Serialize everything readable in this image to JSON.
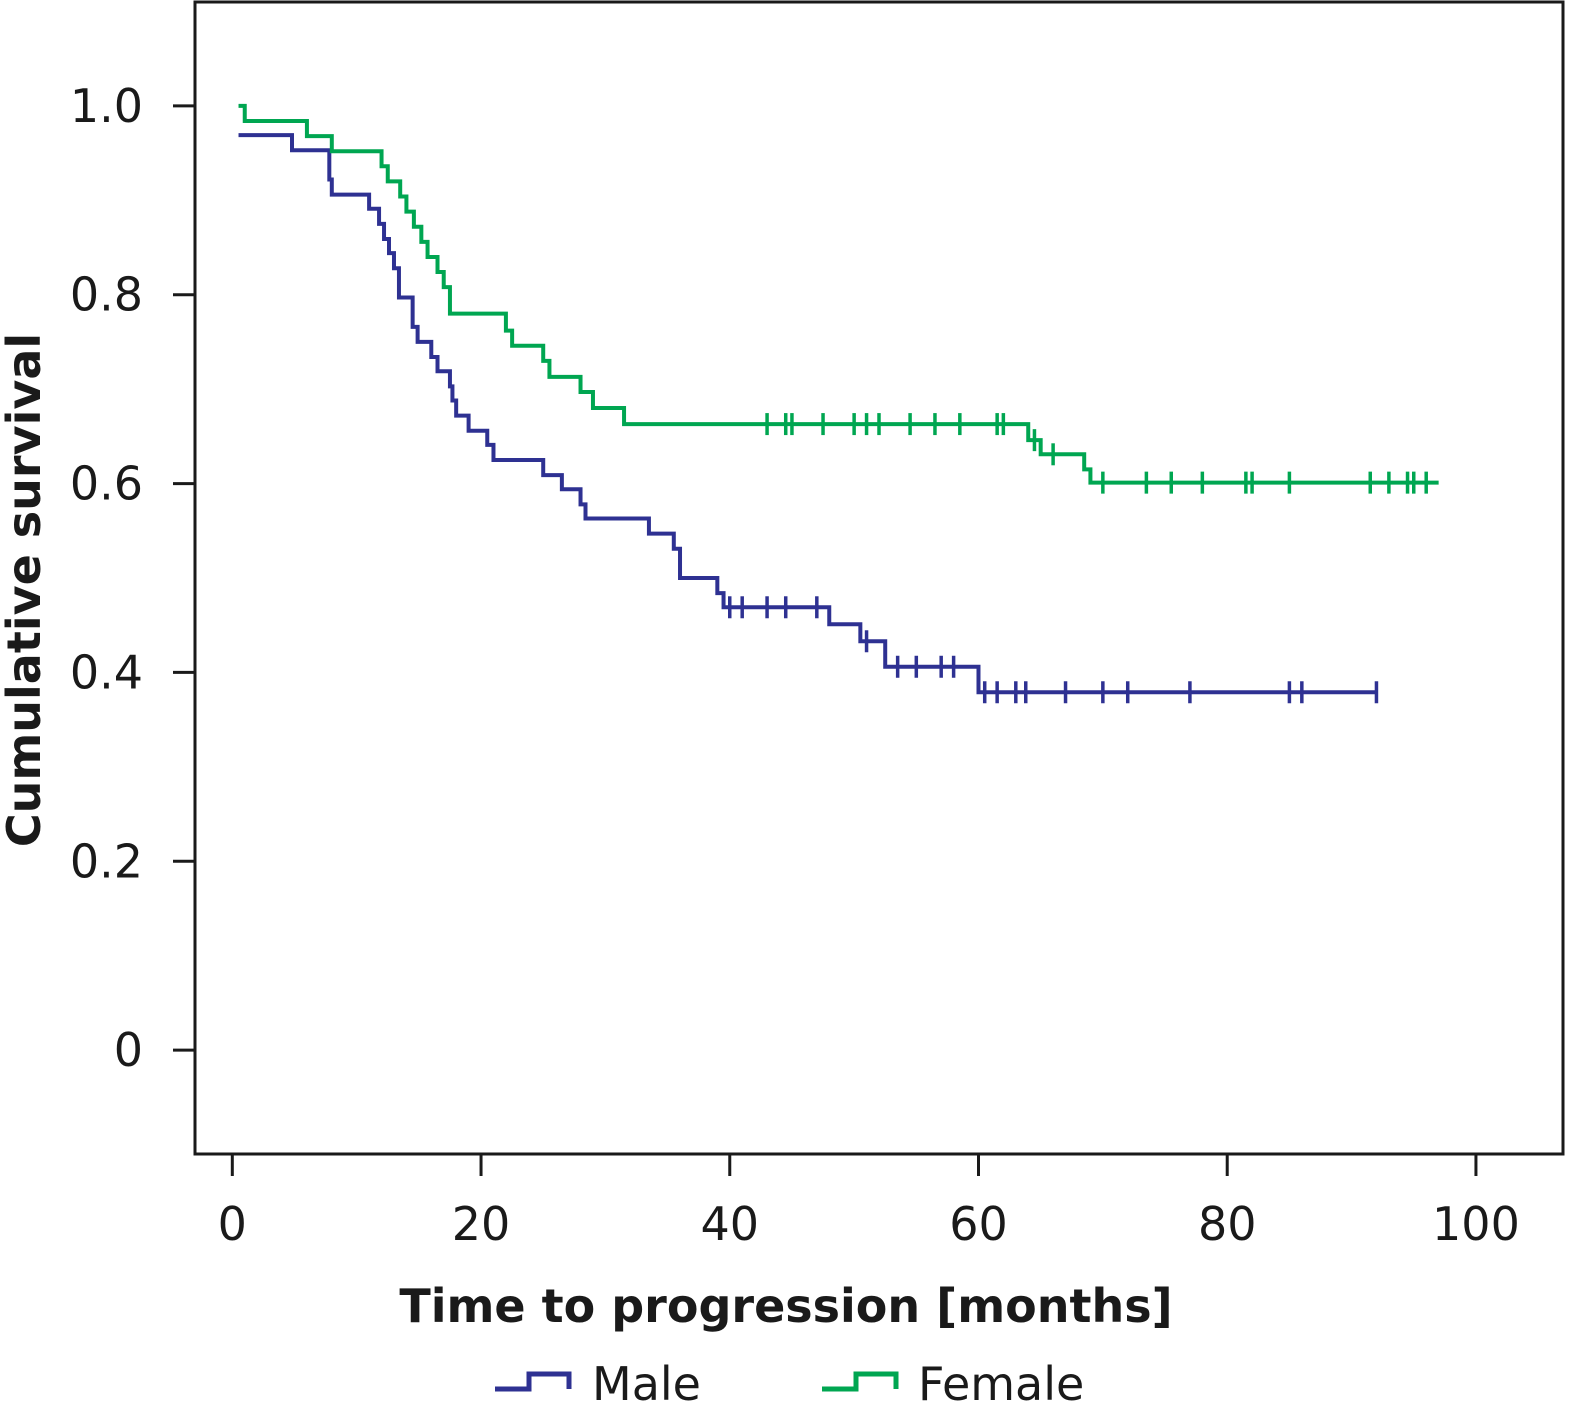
{
  "chart_data": {
    "type": "line",
    "step": true,
    "xlabel": "Time to progression [months]",
    "ylabel": "Cumulative survival",
    "xlim": [
      -3,
      107
    ],
    "ylim": [
      -0.11,
      1.11
    ],
    "xticks": [
      0,
      20,
      40,
      60,
      80,
      100
    ],
    "yticks": [
      0,
      0.2,
      0.4,
      0.6,
      0.8,
      1.0
    ],
    "x_tick_labels": [
      "0",
      "20",
      "40",
      "60",
      "80",
      "100"
    ],
    "y_tick_labels": [
      "0",
      "0.2",
      "0.4",
      "0.6",
      "0.8",
      "1.0"
    ],
    "legend_position": "bottom",
    "series": [
      {
        "name": "Male",
        "color": "#2e3192",
        "points": [
          [
            0.5,
            0.969
          ],
          [
            4.8,
            0.953
          ],
          [
            7.8,
            0.922
          ],
          [
            8,
            0.906
          ],
          [
            11,
            0.891
          ],
          [
            11.8,
            0.875
          ],
          [
            12.2,
            0.859
          ],
          [
            12.6,
            0.844
          ],
          [
            13,
            0.828
          ],
          [
            13.4,
            0.797
          ],
          [
            14.5,
            0.766
          ],
          [
            14.9,
            0.75
          ],
          [
            16,
            0.734
          ],
          [
            16.5,
            0.719
          ],
          [
            17.5,
            0.703
          ],
          [
            17.7,
            0.688
          ],
          [
            18,
            0.672
          ],
          [
            19,
            0.656
          ],
          [
            20.5,
            0.641
          ],
          [
            21,
            0.625
          ],
          [
            25,
            0.609
          ],
          [
            26.5,
            0.594
          ],
          [
            28,
            0.578
          ],
          [
            28.4,
            0.563
          ],
          [
            33.5,
            0.547
          ],
          [
            35.5,
            0.531
          ],
          [
            36,
            0.5
          ],
          [
            39,
            0.484
          ],
          [
            39.5,
            0.469
          ],
          [
            48,
            0.451
          ],
          [
            50.5,
            0.433
          ],
          [
            52.5,
            0.406
          ],
          [
            60,
            0.379
          ],
          [
            92,
            0.379
          ]
        ],
        "censored": [
          40,
          41,
          43,
          44.5,
          47,
          51,
          53.5,
          55,
          57,
          58,
          60.5,
          61.5,
          63,
          63.8,
          67,
          70,
          72,
          77,
          85,
          86,
          92
        ]
      },
      {
        "name": "Female",
        "color": "#00a651",
        "points": [
          [
            0.5,
            1.0
          ],
          [
            1,
            0.984
          ],
          [
            6,
            0.968
          ],
          [
            8,
            0.952
          ],
          [
            12,
            0.936
          ],
          [
            12.5,
            0.92
          ],
          [
            13.5,
            0.904
          ],
          [
            14,
            0.888
          ],
          [
            14.6,
            0.872
          ],
          [
            15.2,
            0.856
          ],
          [
            15.7,
            0.84
          ],
          [
            16.5,
            0.824
          ],
          [
            17,
            0.808
          ],
          [
            17.5,
            0.78
          ],
          [
            22,
            0.762
          ],
          [
            22.5,
            0.746
          ],
          [
            25,
            0.73
          ],
          [
            25.5,
            0.713
          ],
          [
            28,
            0.697
          ],
          [
            29,
            0.68
          ],
          [
            31.5,
            0.663
          ],
          [
            64,
            0.646
          ],
          [
            65,
            0.631
          ],
          [
            68.5,
            0.615
          ],
          [
            69,
            0.601
          ],
          [
            97,
            0.601
          ]
        ],
        "censored": [
          43,
          44.5,
          45,
          47.5,
          50,
          51,
          52,
          54.5,
          56.5,
          58.5,
          61.5,
          62,
          64.5,
          66,
          70,
          73.5,
          75.5,
          78,
          81.5,
          82,
          85,
          91.5,
          93,
          94.5,
          95,
          96
        ]
      }
    ]
  }
}
